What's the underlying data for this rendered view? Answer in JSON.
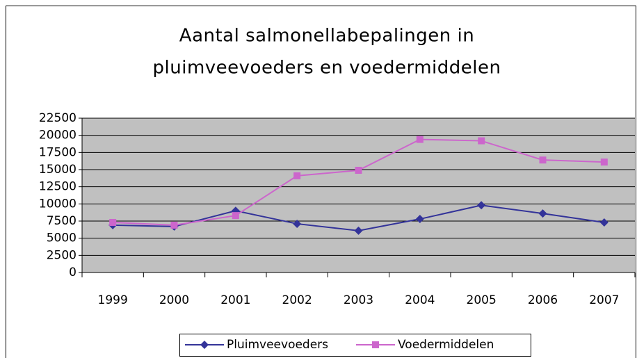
{
  "chart_data": {
    "type": "line",
    "title": [
      "Aantal salmonellabepalingen in",
      "pluimveevoeders en voedermiddelen"
    ],
    "categories": [
      "1999",
      "2000",
      "2001",
      "2002",
      "2003",
      "2004",
      "2005",
      "2006",
      "2007"
    ],
    "series": [
      {
        "name": "Pluimveevoeders",
        "color": "#333399",
        "marker": "diamond",
        "values": [
          6900,
          6700,
          9000,
          7100,
          6100,
          7800,
          9800,
          8600,
          7300
        ]
      },
      {
        "name": "Voedermiddelen",
        "color": "#cc66cc",
        "marker": "square",
        "values": [
          7300,
          6900,
          8300,
          14100,
          14900,
          19400,
          19200,
          16400,
          16100
        ]
      }
    ],
    "ylim": [
      0,
      22500
    ],
    "yticks": [
      0,
      2500,
      5000,
      7500,
      10000,
      12500,
      15000,
      17500,
      20000,
      22500
    ],
    "grid": true,
    "legend": "bottom"
  }
}
